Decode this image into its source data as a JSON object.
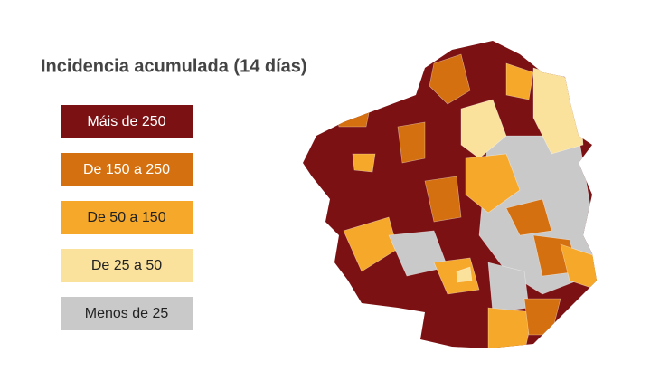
{
  "title": "Incidencia acumulada (14 días)",
  "legend": [
    {
      "label": "Máis de 250",
      "color": "#7b1113",
      "text_color": "#ffffff"
    },
    {
      "label": "De 150 a 250",
      "color": "#d4700f",
      "text_color": "#ffffff"
    },
    {
      "label": "De 50 a 150",
      "color": "#f5a82a",
      "text_color": "#222222"
    },
    {
      "label": "De 25 a 50",
      "color": "#fae19c",
      "text_color": "#222222"
    },
    {
      "label": "Menos de 25",
      "color": "#c9c9c9",
      "text_color": "#222222"
    }
  ]
}
